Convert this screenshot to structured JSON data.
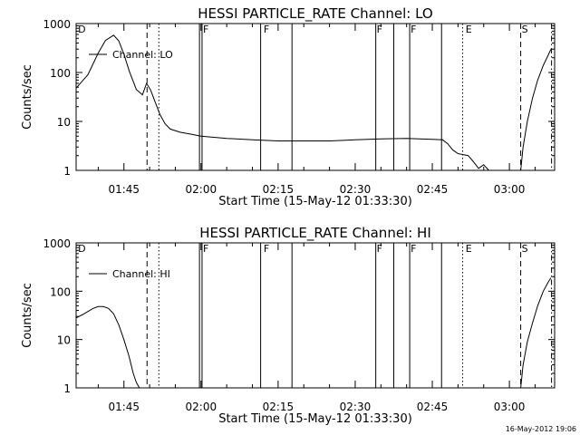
{
  "footer": {
    "timestamp": "16-May-2012 19:06"
  },
  "chart_data": [
    {
      "type": "line",
      "title": "HESSI PARTICLE_RATE Channel: LO",
      "xlabel": "Start Time (15-May-12 01:33:30)",
      "ylabel": "Counts/sec",
      "yscale": "log",
      "ylim": [
        1,
        1000
      ],
      "xlim_minutes_utc": [
        95.7,
        188.8
      ],
      "x_tick_labels": [
        "01:45",
        "02:00",
        "02:15",
        "02:30",
        "02:45",
        "03:00"
      ],
      "x_tick_minutes": [
        105,
        120,
        135,
        150,
        165,
        180
      ],
      "y_tick_labels": [
        "1",
        "10",
        "100",
        "1000"
      ],
      "y_ticks": [
        1,
        10,
        100,
        1000
      ],
      "legend": {
        "label": "Channel: LO",
        "position": "top-left"
      },
      "series": [
        {
          "x": [
            "01:35:42",
            "01:38:00",
            "01:40:00",
            "01:41:24",
            "01:43:00",
            "01:44:00",
            "01:45:00",
            "01:46:00",
            "01:47:24",
            "01:48:36",
            "01:49:24",
            "01:50:12",
            "01:51:00",
            "01:52:00",
            "01:53:00",
            "01:54:00",
            "01:56:00",
            "01:58:00",
            "02:00:00",
            "02:05:00",
            "02:10:00",
            "02:15:00",
            "02:20:00",
            "02:25:00",
            "02:30:00",
            "02:35:00",
            "02:40:00",
            "02:45:00",
            "02:47:00",
            "02:48:00",
            "02:49:00",
            "02:50:00",
            "02:52:00",
            "02:53:00",
            "02:54:00",
            "02:55:00",
            "02:56:00"
          ],
          "y": [
            48,
            90,
            250,
            450,
            580,
            440,
            240,
            110,
            45,
            35,
            60,
            44,
            26,
            14,
            9,
            7,
            6,
            5.5,
            5,
            4.5,
            4.2,
            4,
            4,
            4,
            4.2,
            4.4,
            4.5,
            4.3,
            4.2,
            3.5,
            2.6,
            2.2,
            2,
            1.5,
            1.1,
            1.3,
            1
          ]
        },
        {
          "x": [
            "03:02:12",
            "03:02:40",
            "03:03:30",
            "03:04:30",
            "03:05:30",
            "03:06:36",
            "03:07:30",
            "03:08:06"
          ],
          "y": [
            1,
            3,
            10,
            30,
            70,
            140,
            220,
            300
          ]
        }
      ],
      "event_markers": {
        "labels": [
          {
            "text": "D",
            "x": "01:35:54"
          },
          {
            "text": "F",
            "x": "02:00:12"
          },
          {
            "text": "F",
            "x": "02:12:00"
          },
          {
            "text": "F",
            "x": "02:34:00"
          },
          {
            "text": "F",
            "x": "02:40:36"
          },
          {
            "text": "E",
            "x": "02:51:18"
          },
          {
            "text": "S",
            "x": "03:02:12"
          }
        ],
        "lines": [
          {
            "x": "01:49:30",
            "style": "dashed"
          },
          {
            "x": "01:51:48",
            "style": "dotted"
          },
          {
            "x": "01:59:42",
            "style": "solid"
          },
          {
            "x": "02:00:12",
            "style": "solid"
          },
          {
            "x": "02:11:36",
            "style": "solid"
          },
          {
            "x": "02:17:42",
            "style": "solid"
          },
          {
            "x": "02:34:00",
            "style": "solid"
          },
          {
            "x": "02:37:30",
            "style": "solid"
          },
          {
            "x": "02:40:36",
            "style": "solid"
          },
          {
            "x": "02:46:48",
            "style": "solid"
          },
          {
            "x": "02:50:54",
            "style": "dotted"
          },
          {
            "x": "03:02:12",
            "style": "dashed"
          },
          {
            "x": "03:08:12",
            "style": "dashdot"
          }
        ]
      }
    },
    {
      "type": "line",
      "title": "HESSI PARTICLE_RATE Channel: HI",
      "xlabel": "Start Time (15-May-12 01:33:30)",
      "ylabel": "Counts/sec",
      "yscale": "log",
      "ylim": [
        1,
        1000
      ],
      "xlim_minutes_utc": [
        95.7,
        188.8
      ],
      "x_tick_labels": [
        "01:45",
        "02:00",
        "02:15",
        "02:30",
        "02:45",
        "03:00"
      ],
      "x_tick_minutes": [
        105,
        120,
        135,
        150,
        165,
        180
      ],
      "y_tick_labels": [
        "1",
        "10",
        "100",
        "1000"
      ],
      "y_ticks": [
        1,
        10,
        100,
        1000
      ],
      "legend": {
        "label": "Channel: HI",
        "position": "top-left"
      },
      "series": [
        {
          "x": [
            "01:35:42",
            "01:37:00",
            "01:38:00",
            "01:39:00",
            "01:40:00",
            "01:41:00",
            "01:42:00",
            "01:43:00",
            "01:44:00",
            "01:45:00",
            "01:46:00",
            "01:46:48",
            "01:47:24",
            "01:48:00"
          ],
          "y": [
            28,
            33,
            38,
            44,
            48,
            48,
            44,
            34,
            20,
            10,
            4.5,
            2,
            1.3,
            1
          ]
        },
        {
          "x": [
            "03:02:12",
            "03:02:40",
            "03:03:30",
            "03:04:30",
            "03:05:30",
            "03:06:36",
            "03:07:30",
            "03:08:06"
          ],
          "y": [
            1,
            3,
            9,
            22,
            50,
            100,
            150,
            190
          ]
        }
      ],
      "event_markers": {
        "labels": [
          {
            "text": "D",
            "x": "01:35:54"
          },
          {
            "text": "F",
            "x": "02:00:12"
          },
          {
            "text": "F",
            "x": "02:12:00"
          },
          {
            "text": "F",
            "x": "02:34:00"
          },
          {
            "text": "F",
            "x": "02:40:36"
          },
          {
            "text": "E",
            "x": "02:51:18"
          },
          {
            "text": "S",
            "x": "03:02:12"
          }
        ],
        "lines": [
          {
            "x": "01:49:30",
            "style": "dashed"
          },
          {
            "x": "01:51:48",
            "style": "dotted"
          },
          {
            "x": "01:59:42",
            "style": "solid"
          },
          {
            "x": "02:00:12",
            "style": "solid"
          },
          {
            "x": "02:11:36",
            "style": "solid"
          },
          {
            "x": "02:17:42",
            "style": "solid"
          },
          {
            "x": "02:34:00",
            "style": "solid"
          },
          {
            "x": "02:37:30",
            "style": "solid"
          },
          {
            "x": "02:40:36",
            "style": "solid"
          },
          {
            "x": "02:46:48",
            "style": "solid"
          },
          {
            "x": "02:50:54",
            "style": "dotted"
          },
          {
            "x": "03:02:12",
            "style": "dashed"
          },
          {
            "x": "03:08:12",
            "style": "dashdot"
          }
        ]
      }
    }
  ]
}
